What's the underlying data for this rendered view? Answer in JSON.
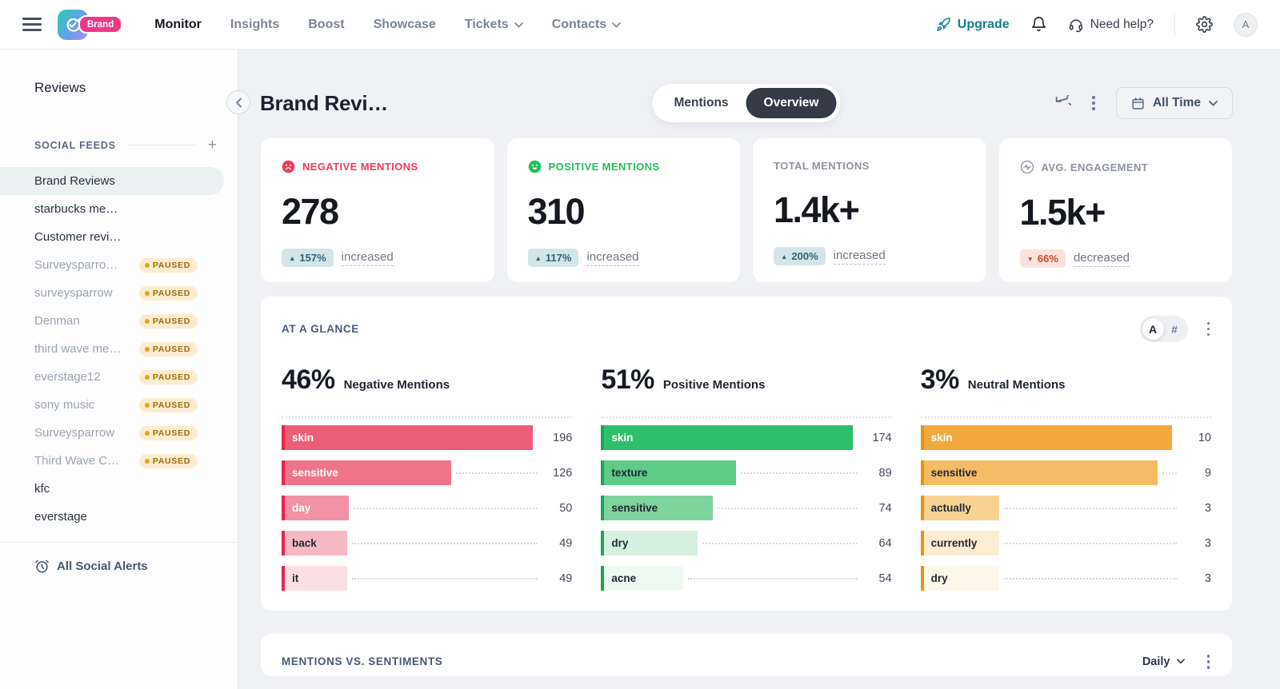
{
  "nav": {
    "brand_badge": "Brand",
    "links": [
      {
        "label": "Monitor",
        "active": true,
        "dropdown": false
      },
      {
        "label": "Insights",
        "active": false,
        "dropdown": false
      },
      {
        "label": "Boost",
        "active": false,
        "dropdown": false
      },
      {
        "label": "Showcase",
        "active": false,
        "dropdown": false
      },
      {
        "label": "Tickets",
        "active": false,
        "dropdown": true
      },
      {
        "label": "Contacts",
        "active": false,
        "dropdown": true
      }
    ],
    "upgrade_label": "Upgrade",
    "need_help_label": "Need help?",
    "avatar_initial": "A"
  },
  "sidebar": {
    "title": "Reviews",
    "section_label": "SOCIAL FEEDS",
    "paused_label": "PAUSED",
    "items": [
      {
        "label": "Brand Reviews",
        "active": true,
        "paused": false
      },
      {
        "label": "starbucks me…",
        "active": false,
        "paused": false
      },
      {
        "label": "Customer revi…",
        "active": false,
        "paused": false
      },
      {
        "label": "Surveysparro…",
        "active": false,
        "paused": true
      },
      {
        "label": "surveysparrow",
        "active": false,
        "paused": true
      },
      {
        "label": "Denman",
        "active": false,
        "paused": true
      },
      {
        "label": "third wave me…",
        "active": false,
        "paused": true
      },
      {
        "label": "everstage12",
        "active": false,
        "paused": true
      },
      {
        "label": "sony music",
        "active": false,
        "paused": true
      },
      {
        "label": "Surveysparrow",
        "active": false,
        "paused": true
      },
      {
        "label": "Third Wave C…",
        "active": false,
        "paused": true
      },
      {
        "label": "kfc",
        "active": false,
        "paused": false
      },
      {
        "label": "everstage",
        "active": false,
        "paused": false
      }
    ],
    "footer_link": "All Social Alerts"
  },
  "header": {
    "title": "Brand Revi…",
    "tabs": [
      {
        "label": "Mentions",
        "active": false
      },
      {
        "label": "Overview",
        "active": true
      }
    ],
    "time_filter": "All Time"
  },
  "stat_cards": [
    {
      "label": "NEGATIVE MENTIONS",
      "icon": "sad-face",
      "label_color": "#f5365c",
      "value": "278",
      "change": "157%",
      "direction": "up",
      "change_text": "increased"
    },
    {
      "label": "POSITIVE MENTIONS",
      "icon": "happy-face",
      "label_color": "#21c05c",
      "value": "310",
      "change": "117%",
      "direction": "up",
      "change_text": "increased"
    },
    {
      "label": "TOTAL MENTIONS",
      "icon": "none",
      "label_color": "#8e939e",
      "value": "1.4k+",
      "change": "200%",
      "direction": "up",
      "change_text": "increased"
    },
    {
      "label": "AVG. ENGAGEMENT",
      "icon": "activity",
      "label_color": "#8e939e",
      "value": "1.5k+",
      "change": "66%",
      "direction": "down",
      "change_text": "decreased"
    }
  ],
  "glance": {
    "title": "AT A GLANCE",
    "toggle_options": [
      {
        "label": "A",
        "active": true
      },
      {
        "label": "#",
        "active": false
      }
    ]
  },
  "chart_data": [
    {
      "type": "bar",
      "orientation": "horizontal",
      "percent": "46%",
      "title": "Negative Mentions",
      "categories": [
        "skin",
        "sensitive",
        "day",
        "back",
        "it"
      ],
      "values": [
        196,
        126,
        50,
        49,
        49
      ],
      "xlim": [
        0,
        196
      ],
      "accent": "#e8244f",
      "bar_colors": [
        "#ec5d77",
        "#ef7489",
        "#f191a3",
        "#f6b8c3",
        "#fadfe4"
      ],
      "label_text_colors": [
        "#ffffff",
        "#ffffff",
        "#ffffff",
        "#232936",
        "#232936"
      ]
    },
    {
      "type": "bar",
      "orientation": "horizontal",
      "percent": "51%",
      "title": "Positive Mentions",
      "categories": [
        "skin",
        "texture",
        "sensitive",
        "dry",
        "acne"
      ],
      "values": [
        174,
        89,
        74,
        64,
        54
      ],
      "xlim": [
        0,
        174
      ],
      "accent": "#1da556",
      "bar_colors": [
        "#2fbe69",
        "#5ecb87",
        "#7dd49c",
        "#d7f0e0",
        "#eef9f2"
      ],
      "label_text_colors": [
        "#ffffff",
        "#232936",
        "#232936",
        "#232936",
        "#232936"
      ]
    },
    {
      "type": "bar",
      "orientation": "horizontal",
      "percent": "3%",
      "title": "Neutral Mentions",
      "categories": [
        "skin",
        "sensitive",
        "actually",
        "currently",
        "dry"
      ],
      "values": [
        10,
        9,
        3,
        3,
        3
      ],
      "xlim": [
        0,
        10
      ],
      "accent": "#e8920e",
      "bar_colors": [
        "#f1a93e",
        "#f4bc64",
        "#f7d291",
        "#fbecd2",
        "#fdf7ea"
      ],
      "label_text_colors": [
        "#ffffff",
        "#232936",
        "#232936",
        "#232936",
        "#232936"
      ]
    }
  ],
  "bottom_card": {
    "title": "MENTIONS VS. SENTIMENTS",
    "frequency": "Daily"
  },
  "colors": {
    "accent_teal": "#15808d",
    "badge_up_bg": "#d3e5e9",
    "badge_up_text": "#2e6370",
    "badge_down_bg": "#fae3dd",
    "badge_down_text": "#d4482f",
    "brand_pink": "#f0388b"
  }
}
